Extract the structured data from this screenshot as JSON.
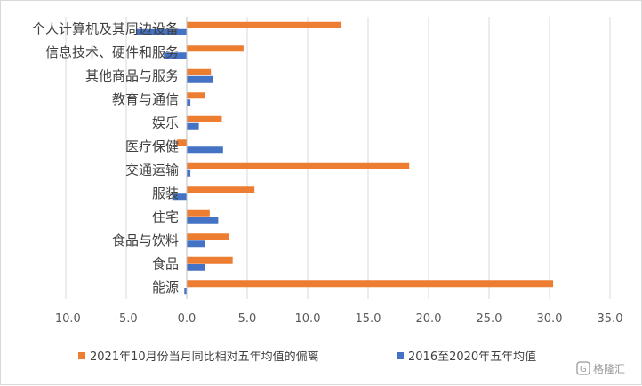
{
  "chart_data": {
    "type": "bar",
    "orientation": "horizontal",
    "categories": [
      "个人计算机及其周边设备",
      "信息技术、硬件和服务",
      "其他商品与服务",
      "教育与通信",
      "娱乐",
      "医疗保健",
      "交通运输",
      "服装",
      "住宅",
      "食品与饮料",
      "食品",
      "能源"
    ],
    "series": [
      {
        "name": "2021年10月份当月同比相对五年均值的偏离",
        "color": "#ed7d31",
        "values": [
          12.8,
          4.7,
          2.0,
          1.5,
          2.9,
          -0.8,
          18.4,
          5.6,
          1.9,
          3.5,
          3.8,
          30.3
        ]
      },
      {
        "name": "2016至2020年五年均值",
        "color": "#4472c4",
        "values": [
          -4.2,
          -1.9,
          2.2,
          0.3,
          1.0,
          3.0,
          0.3,
          -1.2,
          2.6,
          1.5,
          1.5,
          -0.2
        ]
      }
    ],
    "xlim": [
      -10,
      35
    ],
    "xticks": [
      -10,
      -5,
      0,
      5,
      10,
      15,
      20,
      25,
      30,
      35
    ],
    "xtick_labels": [
      "-10.0",
      "-5.0",
      "0.0",
      "5.0",
      "10.0",
      "15.0",
      "20.0",
      "25.0",
      "30.0",
      "35.0"
    ],
    "grid": true,
    "legend_position": "bottom",
    "title": "",
    "xlabel": "",
    "ylabel": ""
  },
  "watermark": {
    "text": "格隆汇",
    "icon": "g-logo-icon"
  }
}
